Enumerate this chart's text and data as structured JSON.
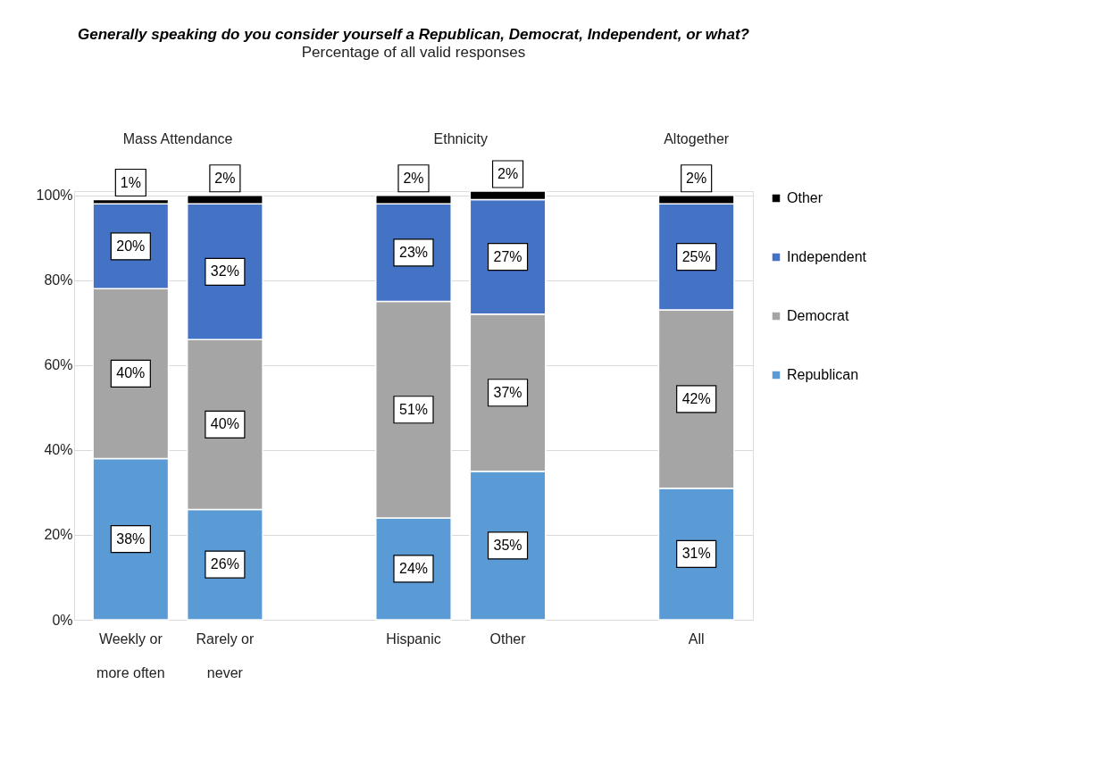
{
  "chart_data": {
    "type": "bar",
    "stacked": true,
    "title": "Generally speaking do you consider yourself a Republican, Democrat, Independent, or what?",
    "subtitle": "Percentage of all valid responses",
    "categories": [
      "Weekly or more often",
      "Rarely or never",
      null,
      "Hispanic",
      "Other",
      null,
      "All"
    ],
    "annotations": [
      "Mass Attendance",
      "Ethnicity",
      "Altogether"
    ],
    "series": [
      {
        "name": "Republican",
        "color": "#5b9bd5",
        "values": [
          38,
          26,
          null,
          24,
          35,
          null,
          31
        ],
        "value_labels": [
          "38%",
          "26%",
          null,
          "24%",
          "35%",
          null,
          "31%"
        ]
      },
      {
        "name": "Democrat",
        "color": "#a5a5a5",
        "values": [
          40,
          40,
          null,
          51,
          37,
          null,
          42
        ],
        "value_labels": [
          "40%",
          "40%",
          null,
          "51%",
          "37%",
          null,
          "42%"
        ]
      },
      {
        "name": "Independent",
        "color": "#4472c4",
        "values": [
          20,
          32,
          null,
          23,
          27,
          null,
          25
        ],
        "value_labels": [
          "20%",
          "32%",
          null,
          "23%",
          "27%",
          null,
          "25%"
        ]
      },
      {
        "name": "Other",
        "color": "#000000",
        "values": [
          1,
          2,
          null,
          2,
          2,
          null,
          2
        ],
        "value_labels": [
          "1%",
          "2%",
          null,
          "2%",
          "2%",
          null,
          "2%"
        ]
      }
    ],
    "ylim": [
      0,
      101
    ],
    "yticks": [
      {
        "value": 0,
        "label": "0%"
      },
      {
        "value": 20,
        "label": "20%"
      },
      {
        "value": 40,
        "label": "40%"
      },
      {
        "value": 60,
        "label": "60%"
      },
      {
        "value": 80,
        "label": "80%"
      },
      {
        "value": 100,
        "label": "100%"
      }
    ],
    "grid": "y",
    "legend": "right"
  }
}
